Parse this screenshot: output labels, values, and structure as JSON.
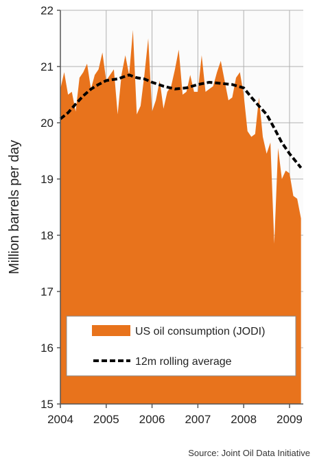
{
  "chart_data": {
    "type": "area",
    "ylabel": "Million barrels per day",
    "xlabel": "",
    "ylim": [
      15,
      22
    ],
    "xlim": [
      2004,
      2009.3
    ],
    "yticks": [
      15,
      16,
      17,
      18,
      19,
      20,
      21,
      22
    ],
    "xticks": [
      2004,
      2005,
      2006,
      2007,
      2008,
      2009
    ],
    "grid": true,
    "legend_position": "bottom-center",
    "source": "Source: Joint Oil Data Initiative",
    "series": [
      {
        "name": "US oil consumption (JODI)",
        "kind": "area",
        "color": "#e8731c",
        "x": [
          2004.0,
          2004.083,
          2004.167,
          2004.25,
          2004.333,
          2004.417,
          2004.5,
          2004.583,
          2004.667,
          2004.75,
          2004.833,
          2004.917,
          2005.0,
          2005.083,
          2005.167,
          2005.25,
          2005.333,
          2005.417,
          2005.5,
          2005.583,
          2005.667,
          2005.75,
          2005.833,
          2005.917,
          2006.0,
          2006.083,
          2006.167,
          2006.25,
          2006.333,
          2006.417,
          2006.5,
          2006.583,
          2006.667,
          2006.75,
          2006.833,
          2006.917,
          2007.0,
          2007.083,
          2007.167,
          2007.25,
          2007.333,
          2007.417,
          2007.5,
          2007.583,
          2007.667,
          2007.75,
          2007.833,
          2007.917,
          2008.0,
          2008.083,
          2008.167,
          2008.25,
          2008.333,
          2008.417,
          2008.5,
          2008.583,
          2008.667,
          2008.75,
          2008.833,
          2008.917,
          2009.0,
          2009.083,
          2009.167,
          2009.25
        ],
        "y": [
          20.6,
          20.9,
          20.5,
          20.55,
          20.2,
          20.8,
          20.9,
          21.05,
          20.6,
          20.85,
          20.95,
          21.25,
          20.75,
          20.85,
          20.95,
          20.15,
          20.85,
          21.2,
          20.85,
          21.65,
          20.15,
          20.3,
          20.85,
          21.5,
          20.2,
          20.4,
          20.75,
          20.25,
          20.55,
          20.65,
          20.95,
          21.3,
          20.5,
          20.55,
          20.85,
          20.55,
          20.55,
          21.2,
          20.55,
          20.6,
          20.65,
          20.9,
          21.1,
          20.75,
          20.4,
          20.45,
          20.8,
          20.9,
          20.5,
          19.85,
          19.75,
          19.8,
          20.45,
          19.75,
          19.45,
          19.65,
          17.85,
          19.55,
          19.0,
          19.15,
          19.1,
          18.7,
          18.65,
          18.3
        ]
      },
      {
        "name": "12m rolling average",
        "kind": "line",
        "style": "dashed",
        "color": "#000000",
        "x": [
          2004.0,
          2004.17,
          2004.33,
          2004.5,
          2004.67,
          2004.83,
          2005.0,
          2005.25,
          2005.5,
          2005.67,
          2005.83,
          2006.0,
          2006.25,
          2006.5,
          2006.75,
          2007.0,
          2007.25,
          2007.5,
          2007.75,
          2008.0,
          2008.17,
          2008.33,
          2008.5,
          2008.67,
          2008.83,
          2009.0,
          2009.25
        ],
        "y": [
          20.07,
          20.18,
          20.33,
          20.48,
          20.6,
          20.68,
          20.75,
          20.78,
          20.85,
          20.8,
          20.78,
          20.72,
          20.65,
          20.6,
          20.62,
          20.68,
          20.72,
          20.7,
          20.68,
          20.62,
          20.45,
          20.3,
          20.15,
          19.9,
          19.65,
          19.45,
          19.2
        ]
      }
    ]
  },
  "colors": {
    "plot_background": "#fbfbfb",
    "grid": "#b0b0b0",
    "area": "#e8731c",
    "rolling": "#000000",
    "axis": "#555555"
  }
}
